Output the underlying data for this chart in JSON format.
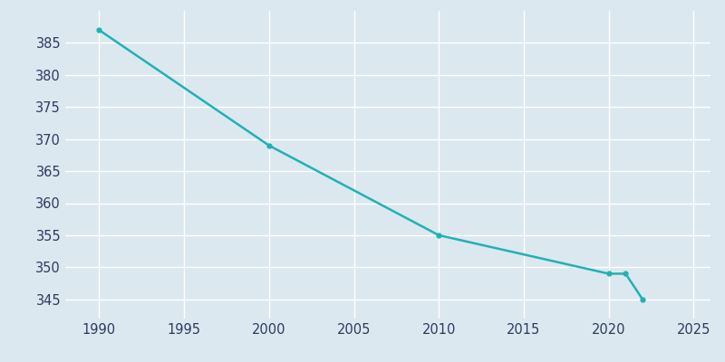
{
  "years": [
    1990,
    2000,
    2010,
    2020,
    2021,
    2022
  ],
  "population": [
    387,
    369,
    355,
    349,
    349,
    345
  ],
  "line_color": "#20b2b2",
  "marker": "o",
  "marker_size": 3.5,
  "line_width": 1.8,
  "background_color": "#dce8f0",
  "plot_background_color": "#dce8f0",
  "grid_color": "#ffffff",
  "xlim": [
    1988,
    2026
  ],
  "ylim": [
    342,
    390
  ],
  "xticks": [
    1990,
    1995,
    2000,
    2005,
    2010,
    2015,
    2020,
    2025
  ],
  "yticks": [
    345,
    350,
    355,
    360,
    365,
    370,
    375,
    380,
    385
  ],
  "tick_label_color": "#2d3a5e",
  "tick_fontsize": 10.5,
  "figsize": [
    8.0,
    4.0
  ],
  "dpi": 100
}
